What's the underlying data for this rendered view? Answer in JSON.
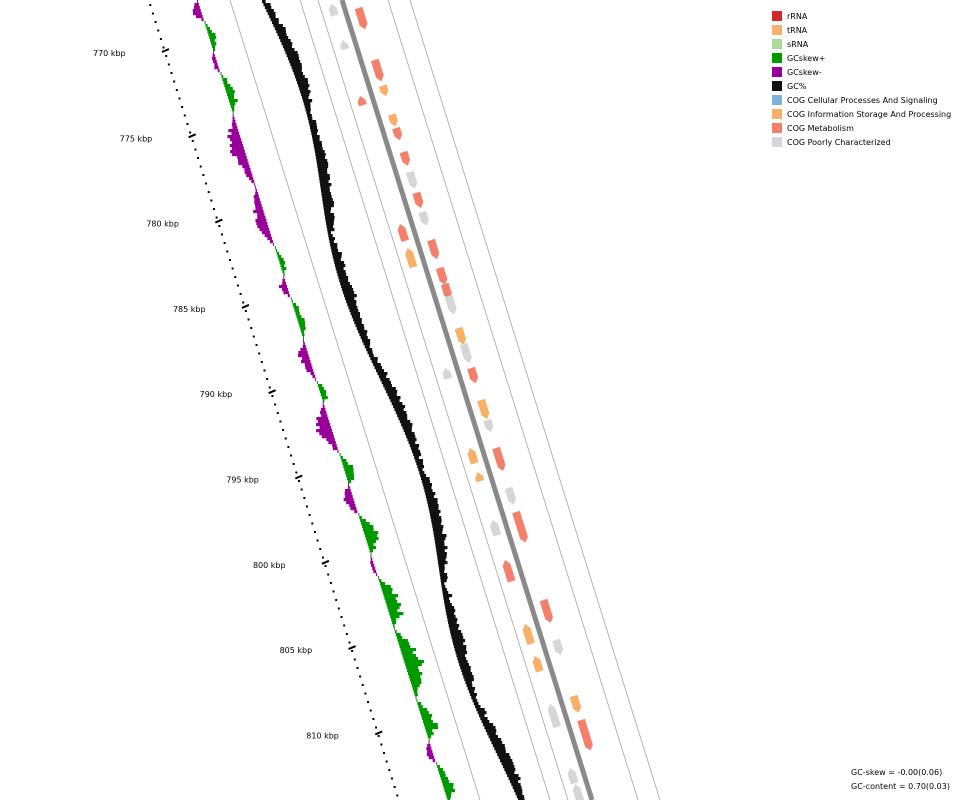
{
  "legend": [
    {
      "label": "rRNA",
      "color": "#d62728"
    },
    {
      "label": "tRNA",
      "color": "#f6b26b"
    },
    {
      "label": "sRNA",
      "color": "#a9dc9a"
    },
    {
      "label": "GCskew+",
      "color": "#009900"
    },
    {
      "label": "GCskew-",
      "color": "#990099"
    },
    {
      "label": "GC%",
      "color": "#111111"
    },
    {
      "label": "COG Cellular Processes And Signaling",
      "color": "#7fb2d9"
    },
    {
      "label": "COG Information Storage And Processing",
      "color": "#f7b066"
    },
    {
      "label": "COG Metabolism",
      "color": "#f4806c"
    },
    {
      "label": "COG Poorly Characterized",
      "color": "#d6d6d6"
    }
  ],
  "ticks": [
    "770 kbp",
    "775 kbp",
    "780 kbp",
    "785 kbp",
    "790 kbp",
    "795 kbp",
    "800 kbp",
    "805 kbp",
    "810 kbp"
  ],
  "stats": {
    "gc_skew": "GC-skew = -0.00(0.06)",
    "gc_content": "GC-content = 0.70(0.03)"
  },
  "genes_forward": [
    {
      "pos": 0.01,
      "len": 0.028,
      "cog": "metabolism"
    },
    {
      "pos": 0.075,
      "len": 0.028,
      "cog": "metabolism"
    },
    {
      "pos": 0.107,
      "len": 0.014,
      "cog": "information"
    },
    {
      "pos": 0.143,
      "len": 0.016,
      "cog": "information"
    },
    {
      "pos": 0.16,
      "len": 0.016,
      "cog": "metabolism"
    },
    {
      "pos": 0.19,
      "len": 0.018,
      "cog": "metabolism"
    },
    {
      "pos": 0.215,
      "len": 0.022,
      "cog": "poorly"
    },
    {
      "pos": 0.241,
      "len": 0.02,
      "cog": "metabolism"
    },
    {
      "pos": 0.265,
      "len": 0.018,
      "cog": "poorly"
    },
    {
      "pos": 0.3,
      "len": 0.025,
      "cog": "metabolism"
    },
    {
      "pos": 0.335,
      "len": 0.022,
      "cog": "metabolism"
    },
    {
      "pos": 0.355,
      "len": 0.02,
      "cog": "metabolism"
    },
    {
      "pos": 0.37,
      "len": 0.024,
      "cog": "poorly"
    },
    {
      "pos": 0.41,
      "len": 0.022,
      "cog": "information"
    },
    {
      "pos": 0.43,
      "len": 0.025,
      "cog": "poorly"
    },
    {
      "pos": 0.46,
      "len": 0.02,
      "cog": "metabolism"
    },
    {
      "pos": 0.5,
      "len": 0.025,
      "cog": "information"
    },
    {
      "pos": 0.525,
      "len": 0.016,
      "cog": "poorly"
    },
    {
      "pos": 0.56,
      "len": 0.03,
      "cog": "metabolism"
    },
    {
      "pos": 0.61,
      "len": 0.022,
      "cog": "poorly"
    },
    {
      "pos": 0.64,
      "len": 0.04,
      "cog": "metabolism"
    },
    {
      "pos": 0.75,
      "len": 0.03,
      "cog": "metabolism"
    },
    {
      "pos": 0.8,
      "len": 0.02,
      "cog": "poorly"
    },
    {
      "pos": 0.87,
      "len": 0.022,
      "cog": "information"
    },
    {
      "pos": 0.9,
      "len": 0.04,
      "cog": "metabolism"
    }
  ],
  "genes_reverse": [
    {
      "pos": 0.005,
      "len": 0.015,
      "cog": "poorly"
    },
    {
      "pos": 0.05,
      "len": 0.012,
      "cog": "poorly"
    },
    {
      "pos": 0.12,
      "len": 0.012,
      "cog": "metabolism"
    },
    {
      "pos": 0.28,
      "len": 0.022,
      "cog": "metabolism"
    },
    {
      "pos": 0.31,
      "len": 0.025,
      "cog": "information"
    },
    {
      "pos": 0.46,
      "len": 0.014,
      "cog": "poorly"
    },
    {
      "pos": 0.56,
      "len": 0.02,
      "cog": "information"
    },
    {
      "pos": 0.59,
      "len": 0.012,
      "cog": "information"
    },
    {
      "pos": 0.65,
      "len": 0.02,
      "cog": "poorly"
    },
    {
      "pos": 0.7,
      "len": 0.028,
      "cog": "metabolism"
    },
    {
      "pos": 0.78,
      "len": 0.026,
      "cog": "information"
    },
    {
      "pos": 0.82,
      "len": 0.02,
      "cog": "information"
    },
    {
      "pos": 0.88,
      "len": 0.03,
      "cog": "poorly"
    },
    {
      "pos": 0.96,
      "len": 0.02,
      "cog": "poorly"
    },
    {
      "pos": 0.98,
      "len": 0.025,
      "cog": "poorly"
    }
  ]
}
